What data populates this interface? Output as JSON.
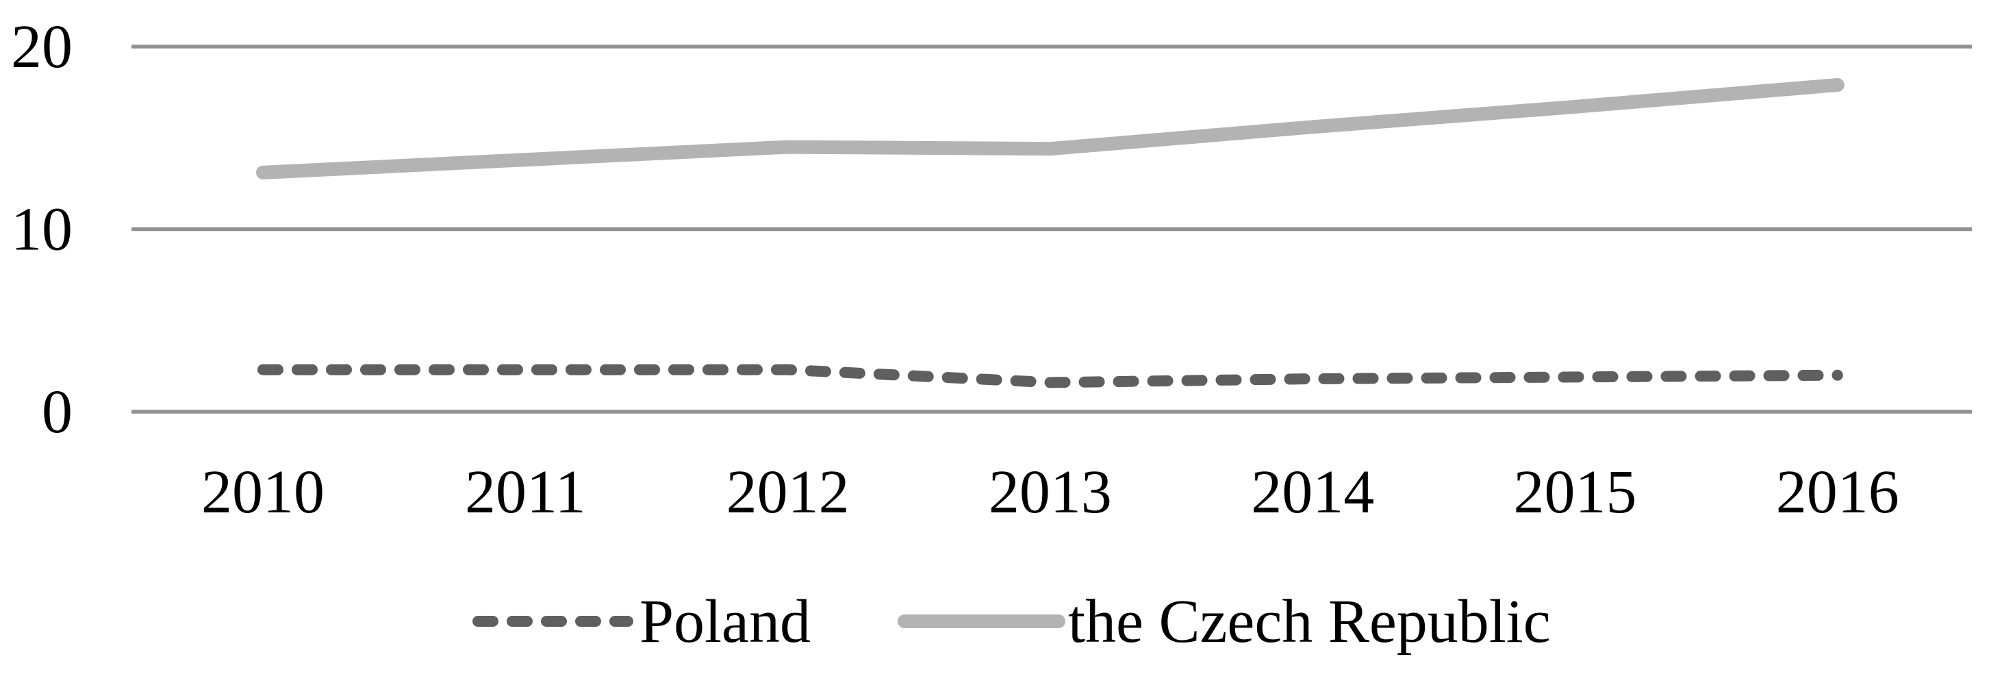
{
  "chart_data": {
    "type": "line",
    "title": "",
    "xlabel": "",
    "ylabel": "",
    "categories": [
      "2010",
      "2011",
      "2012",
      "2013",
      "2014",
      "2015",
      "2016"
    ],
    "series": [
      {
        "name": "Poland",
        "values": [
          2.3,
          2.3,
          2.3,
          1.6,
          1.8,
          1.9,
          2.0
        ],
        "color": "#5f5f5f",
        "style": "dashed"
      },
      {
        "name": "the Czech Republic",
        "values": [
          13.1,
          13.8,
          14.5,
          14.4,
          15.6,
          16.7,
          17.9
        ],
        "color": "#b3b3b3",
        "style": "solid"
      }
    ],
    "ylim": [
      0,
      20
    ],
    "yticks": [
      0,
      10,
      20
    ],
    "grid": "horizontal-only",
    "gridline_color": "#919191",
    "text_color": "#000000",
    "background": "#ffffff",
    "legend_position": "bottom"
  }
}
